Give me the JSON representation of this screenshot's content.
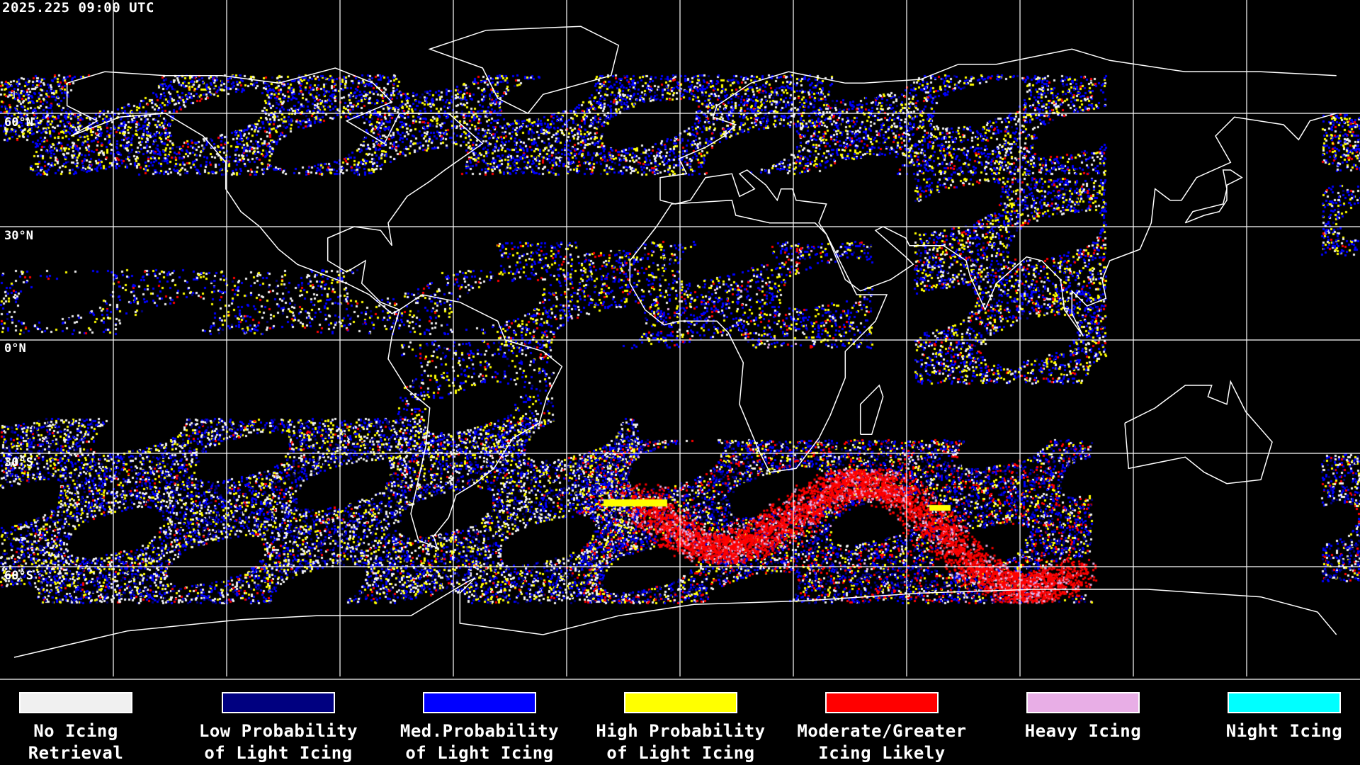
{
  "header": {
    "timestamp": "2025.225 09:00 UTC"
  },
  "map": {
    "latitude_labels": [
      "60°N",
      "30°N",
      "0°N",
      "30°S",
      "60°S"
    ],
    "grid_spacing_degrees": 30,
    "projection": "equirectangular",
    "coastline_color": "#ffffff",
    "grid_color": "#ffffff",
    "background_color": "#000000"
  },
  "legend": {
    "items": [
      {
        "label": "No Icing\nRetrieval",
        "color": "#f0f0f0"
      },
      {
        "label": "Low Probability\nof Light Icing",
        "color": "#000080"
      },
      {
        "label": "Med.Probability\nof Light Icing",
        "color": "#0000ff"
      },
      {
        "label": "High Probability\nof Light Icing",
        "color": "#ffff00"
      },
      {
        "label": "Moderate/Greater\nIcing Likely",
        "color": "#ff0000"
      },
      {
        "label": "Heavy Icing",
        "color": "#e8aee6"
      },
      {
        "label": "Night Icing",
        "color": "#00ffff"
      }
    ]
  }
}
